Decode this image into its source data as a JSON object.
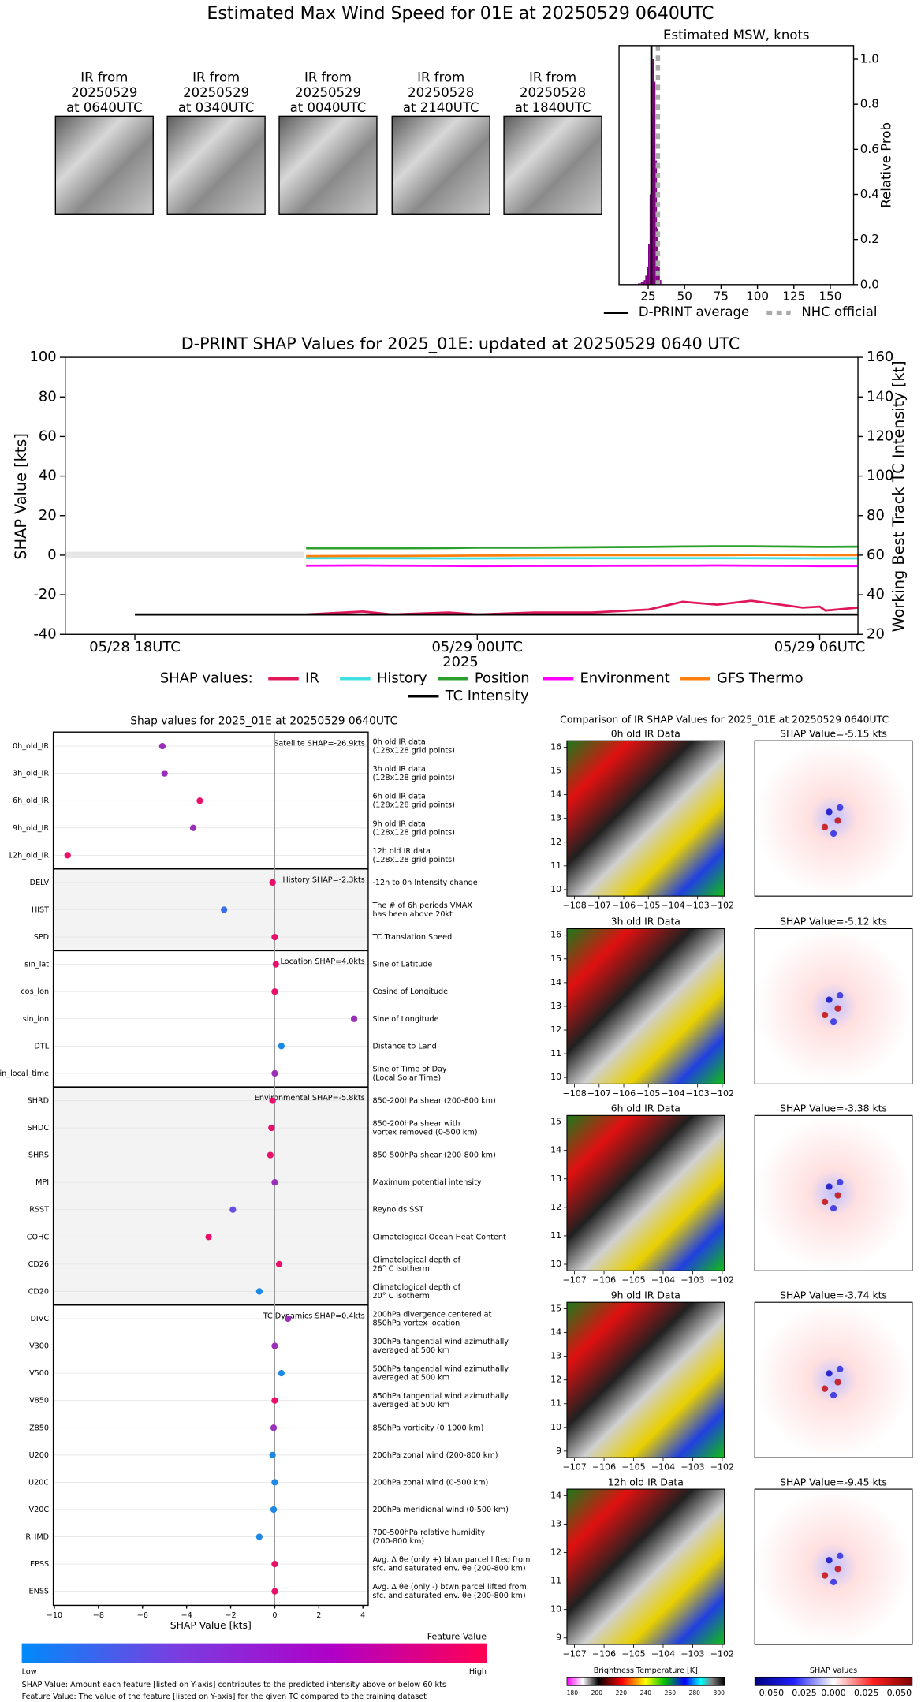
{
  "title": "Estimated Max Wind Speed for 01E at 20250529 0640UTC",
  "ir_panels": [
    [
      "IR from",
      "20250529",
      "at 0640UTC"
    ],
    [
      "IR from",
      "20250529",
      "at 0340UTC"
    ],
    [
      "IR from",
      "20250529",
      "at 0040UTC"
    ],
    [
      "IR from",
      "20250528",
      "at 2140UTC"
    ],
    [
      "IR from",
      "20250528",
      "at 1840UTC"
    ]
  ],
  "chart_data": [
    {
      "type": "histogram",
      "title": "Estimated MSW, knots",
      "ylabel": "Relative Prob",
      "bins": [
        18,
        19,
        20,
        21,
        22,
        23,
        24,
        25,
        26,
        27,
        28,
        29,
        30,
        31,
        32,
        33,
        34
      ],
      "counts": [
        0.005,
        0.005,
        0.01,
        0.01,
        0.02,
        0.04,
        0.08,
        0.18,
        0.4,
        0.75,
        1.0,
        0.9,
        0.55,
        0.25,
        0.08,
        0.02
      ],
      "color": "#800080",
      "xlim": [
        5,
        166
      ],
      "xticks": [
        25,
        50,
        75,
        100,
        125,
        150
      ],
      "ylim": [
        0,
        1.06
      ],
      "yticks": [
        {
          "value": 0,
          "label": "0.0"
        },
        0.2,
        0.4,
        0.6,
        0.8,
        {
          "value": 1,
          "label": "1.0"
        }
      ],
      "lines": [
        {
          "name": "D-PRINT average",
          "x": 27.2,
          "color": "#000000",
          "dashed": false
        },
        {
          "name": "NHC official",
          "x": 31.7,
          "color": "#aaaaaa",
          "dashed": true
        }
      ]
    },
    {
      "type": "line",
      "title": "D-PRINT SHAP Values for 2025_01E: updated at 20250529 0640 UTC",
      "ylabel": "SHAP Value [kts]",
      "y2label": "Working Best Track TC Intensity [kt]",
      "xlabel": "2025",
      "x": [
        3,
        4,
        4.5,
        5.5,
        6,
        7,
        8,
        9,
        9.6,
        10.2,
        10.8,
        11.7,
        12,
        12.1,
        12.67
      ],
      "xlim": [
        -1.22,
        12.67
      ],
      "xticks": [
        {
          "value": 0,
          "label": "05/28 18UTC"
        },
        {
          "value": 6,
          "label": "05/29 00UTC"
        },
        {
          "value": 12,
          "label": "05/29 06UTC"
        }
      ],
      "ylim": [
        -40,
        100
      ],
      "yticks": [
        -40,
        -20,
        0,
        20,
        40,
        60,
        80,
        100
      ],
      "y2lim": [
        20,
        160
      ],
      "y2ticks": [
        20,
        40,
        60,
        80,
        100,
        120,
        140,
        160
      ],
      "legend_title": "SHAP values:",
      "series": [
        {
          "name": "IR",
          "color": "#e0185a",
          "values": [
            -30,
            -28.5,
            -30,
            -29,
            -30,
            -29,
            -29,
            -27.5,
            -23.5,
            -25,
            -23,
            -26.5,
            -26,
            -28,
            -26.5
          ]
        },
        {
          "name": "History",
          "color": "#40e0e0",
          "values": [
            -1.5,
            -1.5,
            -1.5,
            -1.6,
            -1.6,
            -1.5,
            -1.5,
            -1.5,
            -1.5,
            -1.5,
            -1.5,
            -1.6,
            -1.6,
            -1.6,
            -1.6
          ]
        },
        {
          "name": "Position",
          "color": "#2ca02c",
          "values": [
            3.5,
            3.5,
            3.5,
            3.6,
            3.8,
            3.8,
            4,
            4.2,
            4.4,
            4.5,
            4.5,
            4.3,
            4.2,
            4.2,
            4.3
          ]
        },
        {
          "name": "Environment",
          "color": "#ff00ff",
          "values": [
            -5.3,
            -5.2,
            -5.3,
            -5.4,
            -5.5,
            -5.4,
            -5.4,
            -5.3,
            -5.3,
            -5.2,
            -5.3,
            -5.4,
            -5.5,
            -5.5,
            -5.5
          ]
        },
        {
          "name": "GFS Thermo",
          "color": "#ff7f0e",
          "values": [
            -0.5,
            -0.4,
            -0.4,
            -0.3,
            -0.2,
            -0.1,
            0,
            0,
            0,
            0,
            0.1,
            0.1,
            0,
            0,
            0
          ]
        },
        {
          "name": "TC Intensity",
          "color": "#000000",
          "axis": "y2",
          "x": [
            0,
            12.67
          ],
          "values": [
            30,
            30
          ]
        }
      ]
    },
    {
      "type": "dot",
      "title": "Shap values for 2025_01E at 20250529 0640UTC",
      "xlabel": "SHAP Value [kts]",
      "xlim": [
        -10.05,
        4.24
      ],
      "xticks": [
        {
          "value": -10,
          "label": "−10"
        },
        {
          "value": -8,
          "label": "−8"
        },
        {
          "value": -6,
          "label": "−6"
        },
        {
          "value": -4,
          "label": "−4"
        },
        {
          "value": -2,
          "label": "−2"
        },
        0,
        2,
        4
      ],
      "groups": [
        {
          "label": "Satellite SHAP=-26.9kts",
          "shaded": false,
          "features": [
            {
              "name": "0h_old_IR",
              "value": -5.1,
              "color": "#9b30b8",
              "description": [
                "0h old IR data",
                "(128x128 grid points)"
              ]
            },
            {
              "name": "3h_old_IR",
              "value": -5.0,
              "color": "#9b30b8",
              "description": [
                "3h old IR data",
                "(128x128 grid points)"
              ]
            },
            {
              "name": "6h_old_IR",
              "value": -3.4,
              "color": "#e8106a",
              "description": [
                "6h old IR data",
                "(128x128 grid points)"
              ]
            },
            {
              "name": "9h_old_IR",
              "value": -3.7,
              "color": "#9b30b8",
              "description": [
                "9h old IR data",
                "(128x128 grid points)"
              ]
            },
            {
              "name": "12h_old_IR",
              "value": -9.4,
              "color": "#e8106a",
              "description": [
                "12h old IR data",
                "(128x128 grid points)"
              ]
            }
          ]
        },
        {
          "label": "History SHAP=-2.3kts",
          "shaded": true,
          "features": [
            {
              "name": "DELV",
              "value": -0.1,
              "color": "#e8106a",
              "description": [
                "-12h to 0h Intensity change"
              ]
            },
            {
              "name": "HIST",
              "value": -2.3,
              "color": "#3a6ee8",
              "description": [
                "The # of 6h periods VMAX",
                "has been above 20kt"
              ]
            },
            {
              "name": "SPD",
              "value": 0.0,
              "color": "#e8106a",
              "description": [
                "TC Translation Speed"
              ]
            }
          ]
        },
        {
          "label": "Location SHAP=4.0kts",
          "shaded": false,
          "features": [
            {
              "name": "sin_lat",
              "value": 0.05,
              "color": "#e8106a",
              "description": [
                "Sine of Latitude"
              ]
            },
            {
              "name": "cos_lon",
              "value": 0.0,
              "color": "#e8106a",
              "description": [
                "Cosine of Longitude"
              ]
            },
            {
              "name": "sin_lon",
              "value": 3.6,
              "color": "#9b30b8",
              "description": [
                "Sine of Longitude"
              ]
            },
            {
              "name": "DTL",
              "value": 0.3,
              "color": "#1e88e5",
              "description": [
                "Distance to Land"
              ]
            },
            {
              "name": "sin_local_time",
              "value": 0.0,
              "color": "#9b30b8",
              "description": [
                "Sine of Time of Day",
                "(Local Solar Time)"
              ]
            }
          ]
        },
        {
          "label": "Environmental SHAP=-5.8kts",
          "shaded": true,
          "features": [
            {
              "name": "SHRD",
              "value": -0.1,
              "color": "#e8106a",
              "description": [
                "850-200hPa shear (200-800 km)"
              ]
            },
            {
              "name": "SHDC",
              "value": -0.15,
              "color": "#e8106a",
              "description": [
                "850-200hPa shear with",
                "vortex removed (0-500 km)"
              ]
            },
            {
              "name": "SHRS",
              "value": -0.2,
              "color": "#e8106a",
              "description": [
                "850-500hPa shear (200-800 km)"
              ]
            },
            {
              "name": "MPI",
              "value": 0.0,
              "color": "#9b30b8",
              "description": [
                "Maximum potential intensity"
              ]
            },
            {
              "name": "RSST",
              "value": -1.9,
              "color": "#6a4ee0",
              "description": [
                "Reynolds SST"
              ]
            },
            {
              "name": "COHC",
              "value": -3.0,
              "color": "#e8106a",
              "description": [
                "Climatological Ocean Heat Content"
              ]
            },
            {
              "name": "CD26",
              "value": 0.2,
              "color": "#e8106a",
              "description": [
                "Climatological depth of",
                "26° C isotherm"
              ]
            },
            {
              "name": "CD20",
              "value": -0.7,
              "color": "#1e88e5",
              "description": [
                "Climatological depth of",
                "20° C isotherm"
              ]
            }
          ]
        },
        {
          "label": "TC Dynamics SHAP=0.4kts",
          "shaded": false,
          "features": [
            {
              "name": "DIVC",
              "value": 0.6,
              "color": "#9b30b8",
              "description": [
                "200hPa divergence centered at",
                "850hPa vortex location"
              ]
            },
            {
              "name": "V300",
              "value": 0.0,
              "color": "#9b30b8",
              "description": [
                "300hPa tangential wind azimuthally",
                "averaged at 500 km"
              ]
            },
            {
              "name": "V500",
              "value": 0.3,
              "color": "#1e88e5",
              "description": [
                "500hPa tangential wind azimuthally",
                "averaged at 500 km"
              ]
            },
            {
              "name": "V850",
              "value": 0.0,
              "color": "#e8106a",
              "description": [
                "850hPa tangential wind azimuthally",
                "averaged at 500 km"
              ]
            },
            {
              "name": "Z850",
              "value": -0.05,
              "color": "#9b30b8",
              "description": [
                "850hPa vorticity (0-1000 km)"
              ]
            },
            {
              "name": "U200",
              "value": -0.1,
              "color": "#1e88e5",
              "description": [
                "200hPa zonal wind (200-800 km)"
              ]
            },
            {
              "name": "U20C",
              "value": 0.0,
              "color": "#1e88e5",
              "description": [
                "200hPa zonal wind (0-500 km)"
              ]
            },
            {
              "name": "V20C",
              "value": -0.05,
              "color": "#1e88e5",
              "description": [
                "200hPa meridional wind (0-500 km)"
              ]
            },
            {
              "name": "RHMD",
              "value": -0.7,
              "color": "#1e88e5",
              "description": [
                "700-500hPa relative humidity",
                "(200-800 km)"
              ]
            },
            {
              "name": "EPSS",
              "value": 0.0,
              "color": "#e8106a",
              "description": [
                "Avg. Δ θe (only +) btwn parcel lifted from",
                "sfc. and saturated env. θe (200-800 km)"
              ]
            },
            {
              "name": "ENSS",
              "value": 0.0,
              "color": "#e8106a",
              "description": [
                "Avg. Δ θe (only -) btwn parcel lifted from",
                "sfc. and saturated env. θe (200-800 km)"
              ]
            }
          ]
        }
      ],
      "colorbar": {
        "label": "Feature Value",
        "low": "Low",
        "high": "High",
        "colors": [
          "#008afb",
          "#7a3de0",
          "#b000c8",
          "#ff0052"
        ]
      },
      "footnotes": [
        "SHAP Value: Amount each feature [listed on Y-axis] contributes to the predicted intensity above or below 60 kts",
        "Feature Value: The value of the feature [listed on Y-axis] for the given TC compared to the training dataset"
      ]
    }
  ],
  "ir_comparison": {
    "title": "Comparison of IR SHAP Values for 2025_01E at 20250529 0640UTC",
    "rows": [
      {
        "title": "0h old IR Data",
        "shap_title": "SHAP Value=-5.15 kts",
        "yticks": [
          "10",
          "11",
          "12",
          "13",
          "14",
          "15",
          "16"
        ],
        "xticks": [
          "−108",
          "−107",
          "−106",
          "−105",
          "−104",
          "−103",
          "−102"
        ]
      },
      {
        "title": "3h old IR Data",
        "shap_title": "SHAP Value=-5.12 kts",
        "yticks": [
          "10",
          "11",
          "12",
          "13",
          "14",
          "15",
          "16"
        ],
        "xticks": [
          "−108",
          "−107",
          "−106",
          "−105",
          "−104",
          "−103",
          "−102"
        ]
      },
      {
        "title": "6h old IR Data",
        "shap_title": "SHAP Value=-3.38 kts",
        "yticks": [
          "10",
          "11",
          "12",
          "13",
          "14",
          "15"
        ],
        "xticks": [
          "−107",
          "−106",
          "−105",
          "−104",
          "−103",
          "−102"
        ]
      },
      {
        "title": "9h old IR Data",
        "shap_title": "SHAP Value=-3.74 kts",
        "yticks": [
          "9",
          "10",
          "11",
          "12",
          "13",
          "14",
          "15"
        ],
        "xticks": [
          "−107",
          "−106",
          "−105",
          "−104",
          "−103",
          "−102"
        ]
      },
      {
        "title": "12h old IR Data",
        "shap_title": "SHAP Value=-9.45 kts",
        "yticks": [
          "9",
          "10",
          "11",
          "12",
          "13",
          "14"
        ],
        "xticks": [
          "−107",
          "−106",
          "−105",
          "−104",
          "−103",
          "−102"
        ]
      }
    ],
    "colorbars": [
      {
        "label": "Brightness Temperature [K]",
        "ticks": [
          "180",
          "200",
          "220",
          "240",
          "260",
          "280",
          "300"
        ]
      },
      {
        "label": "SHAP Values",
        "ticks": [
          "−0.050",
          "−0.025",
          "0.000",
          "0.025",
          "0.050"
        ]
      }
    ]
  }
}
